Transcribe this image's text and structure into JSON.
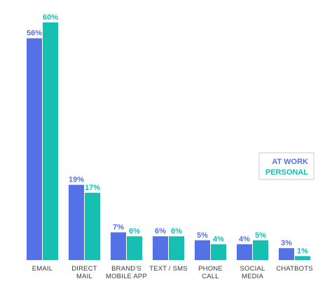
{
  "chart_data": {
    "type": "bar",
    "categories": [
      [
        "EMAIL"
      ],
      [
        "DIRECT",
        "MAIL"
      ],
      [
        "BRAND'S",
        "MOBILE APP"
      ],
      [
        "TEXT / SMS"
      ],
      [
        "PHONE",
        "CALL"
      ],
      [
        "SOCIAL",
        "MEDIA"
      ],
      [
        "CHATBOTS"
      ]
    ],
    "series": [
      {
        "name": "AT WORK",
        "values": [
          56,
          19,
          7,
          6,
          5,
          4,
          3
        ],
        "labels": [
          "56%",
          "19%",
          "7%",
          "6%",
          "5%",
          "4%",
          "3%"
        ],
        "color": "#5472e6"
      },
      {
        "name": "PERSONAL",
        "values": [
          60,
          17,
          6,
          6,
          4,
          5,
          1
        ],
        "labels": [
          "60%",
          "17%",
          "6%",
          "6%",
          "4%",
          "5%",
          "1%"
        ],
        "color": "#17bfb2"
      }
    ],
    "ylim": [
      0,
      60
    ],
    "grid": false,
    "legend": "right",
    "legend_border_color": "#d9dde3"
  }
}
